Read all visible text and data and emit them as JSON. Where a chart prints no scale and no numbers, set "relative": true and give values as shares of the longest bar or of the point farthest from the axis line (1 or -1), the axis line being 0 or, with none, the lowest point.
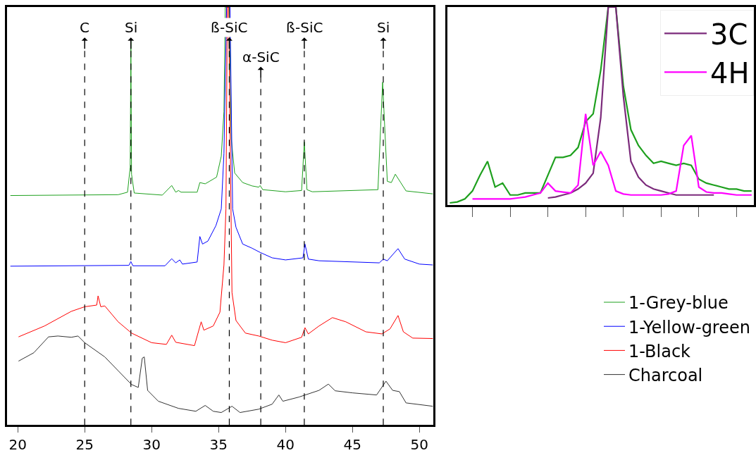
{
  "chart_data": [
    {
      "type": "line",
      "relative": true,
      "xlim": [
        19.2,
        51.05
      ],
      "xticks": [
        20,
        25,
        30,
        35,
        40,
        45,
        50
      ],
      "tick_labels": "x",
      "grid": false,
      "legend": "bottom right",
      "marker": "none",
      "line_style": "solid",
      "series": [
        {
          "name": "1-Grey-blue",
          "color": "#1ea01e",
          "x": [
            19.45,
            27.5,
            28.2,
            28.4,
            28.45,
            28.5,
            28.7,
            30.8,
            31.5,
            31.8,
            32.0,
            32.2,
            33.4,
            33.6,
            34.0,
            34.85,
            35.2,
            35.4,
            35.5,
            35.8,
            35.95,
            36.2,
            36.8,
            37.5,
            38.0,
            38.1,
            38.3,
            40.0,
            41.2,
            41.4,
            41.6,
            42.0,
            46.9,
            47.25,
            47.4,
            47.6,
            47.9,
            48.2,
            48.6,
            49.0,
            51.0
          ],
          "values": [
            0.549,
            0.551,
            0.557,
            0.617,
            0.92,
            0.6,
            0.555,
            0.55,
            0.573,
            0.557,
            0.561,
            0.557,
            0.557,
            0.58,
            0.577,
            0.593,
            0.643,
            0.75,
            1.0,
            1.0,
            0.683,
            0.603,
            0.58,
            0.572,
            0.569,
            0.573,
            0.563,
            0.558,
            0.561,
            0.677,
            0.563,
            0.558,
            0.563,
            0.82,
            0.717,
            0.583,
            0.58,
            0.6,
            0.58,
            0.56,
            0.553
          ]
        },
        {
          "name": "1-Yellow-green",
          "color": "#0000ff",
          "x": [
            19.45,
            28.3,
            28.45,
            28.6,
            31.0,
            31.5,
            31.8,
            32.1,
            32.3,
            33.4,
            33.6,
            33.8,
            34.2,
            34.8,
            35.2,
            35.4,
            35.6,
            35.85,
            36.05,
            36.3,
            36.8,
            37.5,
            38.1,
            39.0,
            40.0,
            41.3,
            41.45,
            41.7,
            42.5,
            47.0,
            47.3,
            47.6,
            48.4,
            48.9,
            50.0,
            51.0
          ],
          "values": [
            0.38,
            0.382,
            0.391,
            0.381,
            0.381,
            0.398,
            0.388,
            0.395,
            0.385,
            0.39,
            0.451,
            0.433,
            0.44,
            0.477,
            0.517,
            0.65,
            1.0,
            1.0,
            0.517,
            0.473,
            0.433,
            0.423,
            0.413,
            0.4,
            0.395,
            0.4,
            0.433,
            0.397,
            0.393,
            0.388,
            0.397,
            0.393,
            0.422,
            0.397,
            0.385,
            0.383
          ]
        },
        {
          "name": "1-Black",
          "color": "#ff0000",
          "x": [
            20.06,
            22.0,
            24.0,
            25.0,
            25.9,
            26.0,
            26.2,
            26.5,
            27.5,
            28.5,
            30.0,
            31.1,
            31.5,
            31.8,
            33.2,
            33.7,
            33.9,
            34.6,
            35.1,
            35.4,
            35.55,
            35.65,
            35.75,
            36.0,
            36.3,
            37.0,
            38.0,
            39.0,
            40.0,
            41.2,
            41.45,
            41.7,
            42.5,
            43.5,
            44.5,
            46.0,
            47.2,
            47.8,
            48.4,
            48.8,
            49.5,
            51.0
          ],
          "values": [
            0.211,
            0.237,
            0.272,
            0.283,
            0.287,
            0.309,
            0.283,
            0.285,
            0.247,
            0.22,
            0.197,
            0.193,
            0.215,
            0.198,
            0.19,
            0.247,
            0.227,
            0.237,
            0.27,
            0.383,
            0.517,
            1.0,
            1.0,
            0.317,
            0.25,
            0.22,
            0.213,
            0.203,
            0.197,
            0.21,
            0.233,
            0.218,
            0.237,
            0.257,
            0.247,
            0.223,
            0.218,
            0.23,
            0.262,
            0.223,
            0.208,
            0.207
          ]
        },
        {
          "name": "Charcoal",
          "color": "#333333",
          "x": [
            20.06,
            21.2,
            22.3,
            23.0,
            24.0,
            24.5,
            25.0,
            26.5,
            27.5,
            28.5,
            29.0,
            29.3,
            29.45,
            29.7,
            30.5,
            32.0,
            33.3,
            34.0,
            34.6,
            35.2,
            36.0,
            36.6,
            38.0,
            39.0,
            39.5,
            39.8,
            41.0,
            42.5,
            43.2,
            43.7,
            45.0,
            46.8,
            47.5,
            48.0,
            48.5,
            49.0,
            51.0
          ],
          "values": [
            0.153,
            0.173,
            0.211,
            0.213,
            0.21,
            0.213,
            0.197,
            0.163,
            0.13,
            0.097,
            0.09,
            0.16,
            0.163,
            0.083,
            0.057,
            0.04,
            0.033,
            0.047,
            0.033,
            0.03,
            0.045,
            0.03,
            0.038,
            0.05,
            0.072,
            0.057,
            0.067,
            0.083,
            0.098,
            0.082,
            0.077,
            0.072,
            0.105,
            0.083,
            0.08,
            0.053,
            0.045
          ]
        }
      ],
      "ref_lines": [
        {
          "axis": "x",
          "value": 25,
          "label": "C",
          "color": "#000000",
          "line_style": "dashed"
        },
        {
          "axis": "x",
          "value": 28.45,
          "label": "Si",
          "color": "#000000",
          "line_style": "dashed"
        },
        {
          "axis": "x",
          "value": 35.8,
          "label": "ß-SiC",
          "color": "#000000",
          "line_style": "dashed"
        },
        {
          "axis": "x",
          "value": 38.15,
          "label": "α-SiC",
          "color": "#000000",
          "line_style": "dashed"
        },
        {
          "axis": "x",
          "value": 41.4,
          "label": "ß-SiC",
          "color": "#000000",
          "line_style": "dashed"
        },
        {
          "axis": "x",
          "value": 47.3,
          "label": "Si",
          "color": "#000000",
          "line_style": "dashed"
        }
      ]
    },
    {
      "type": "line",
      "relative": true,
      "categories": [
        null,
        null,
        null,
        null,
        null,
        null,
        null,
        null,
        null,
        null,
        null,
        null,
        null,
        null,
        null,
        null,
        null,
        null,
        null,
        null,
        null,
        null,
        null,
        null,
        null,
        null,
        null,
        null,
        null,
        null,
        null,
        null,
        null,
        null,
        null,
        null,
        null,
        null,
        null,
        null,
        null
      ],
      "tick_labels": false,
      "grid": false,
      "legend": "top right",
      "marker": "none",
      "line_style": "solid",
      "series": [
        {
          "color": "#1ea01e",
          "values": [
            0.01,
            0.015,
            0.03,
            0.07,
            0.15,
            0.22,
            0.09,
            0.11,
            0.05,
            0.05,
            0.06,
            0.06,
            0.06,
            0.15,
            0.24,
            0.24,
            0.25,
            0.29,
            0.42,
            0.46,
            0.68,
            1.0,
            1.0,
            0.6,
            0.38,
            0.3,
            0.25,
            0.21,
            0.22,
            0.21,
            0.2,
            0.21,
            0.2,
            0.13,
            0.11,
            0.1,
            0.09,
            0.08,
            0.08,
            0.07,
            0.07
          ]
        },
        {
          "name": "3C",
          "color": "#7b2a7b",
          "values": [
            null,
            null,
            null,
            null,
            null,
            null,
            null,
            null,
            null,
            null,
            null,
            null,
            null,
            0.035,
            0.04,
            0.05,
            0.06,
            0.08,
            0.11,
            0.16,
            0.44,
            1.0,
            1.0,
            0.55,
            0.22,
            0.14,
            0.1,
            0.08,
            0.07,
            0.06,
            0.05,
            0.05,
            0.05,
            0.05,
            0.05,
            0.05,
            null,
            null,
            null,
            null,
            null
          ]
        },
        {
          "name": "4H",
          "color": "#ff00ff",
          "values": [
            null,
            null,
            null,
            0.03,
            0.03,
            0.03,
            0.03,
            0.03,
            0.03,
            0.035,
            0.04,
            0.05,
            0.06,
            0.11,
            0.07,
            0.065,
            0.06,
            0.1,
            0.46,
            0.2,
            0.27,
            0.2,
            0.07,
            0.055,
            0.05,
            0.05,
            0.05,
            0.05,
            0.05,
            0.055,
            0.07,
            0.3,
            0.35,
            0.09,
            0.065,
            0.06,
            0.06,
            0.055,
            0.05,
            0.05,
            0.05
          ]
        }
      ]
    }
  ]
}
